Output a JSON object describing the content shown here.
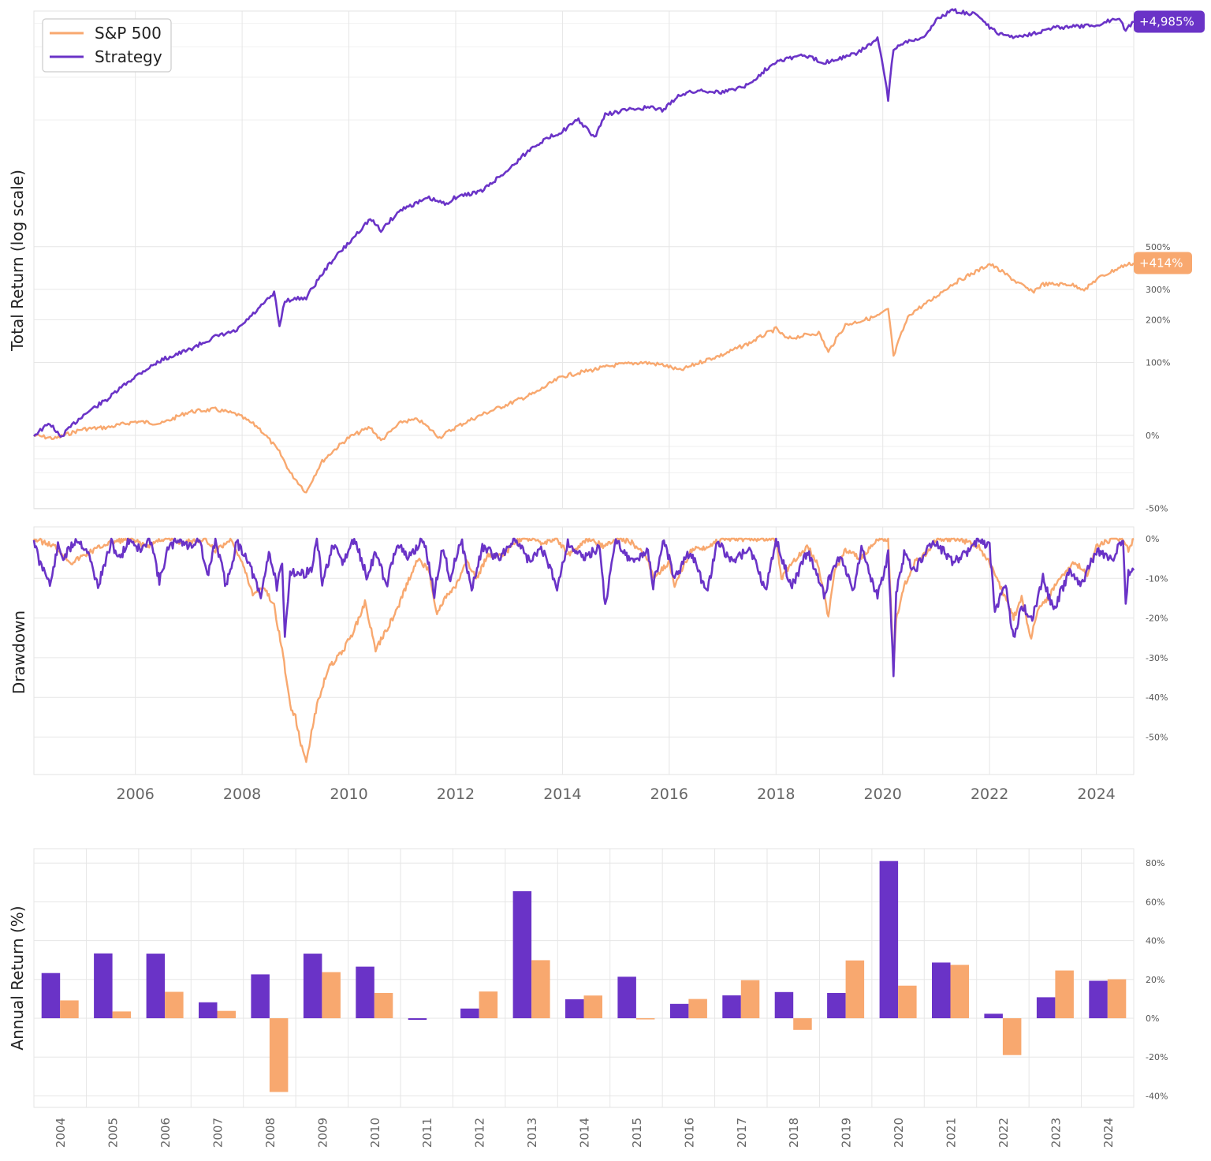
{
  "colors": {
    "strategy": "#6a33c7",
    "sp500": "#f8a86f",
    "grid": "#e6e6e6",
    "text": "#555555"
  },
  "legend": {
    "sp500": "S&P 500",
    "strategy": "Strategy"
  },
  "chart_data": [
    {
      "type": "line",
      "ylabel": "Total Return (log scale)",
      "yscale": "log",
      "right_ticks": [
        {
          "value": 500,
          "label": "500%"
        },
        {
          "value": 300,
          "label": "300%"
        },
        {
          "value": 200,
          "label": "200%"
        },
        {
          "value": 100,
          "label": "100%"
        },
        {
          "value": 0,
          "label": "0%"
        },
        {
          "value": -50,
          "label": "-50%"
        }
      ],
      "end_labels": {
        "strategy": "+4,985%",
        "sp500": "+414%"
      },
      "legend_placement": "top-left",
      "grid": true,
      "series": [
        {
          "name": "S&P 500",
          "x": [
            2004.1,
            2004.5,
            2005.0,
            2005.5,
            2006.0,
            2006.5,
            2007.0,
            2007.5,
            2007.9,
            2008.3,
            2008.7,
            2008.9,
            2009.2,
            2009.5,
            2010.0,
            2010.4,
            2010.6,
            2011.0,
            2011.3,
            2011.7,
            2012.0,
            2012.5,
            2013.0,
            2013.5,
            2014.0,
            2014.5,
            2015.0,
            2015.5,
            2015.9,
            2016.2,
            2016.7,
            2017.0,
            2017.5,
            2018.0,
            2018.2,
            2018.8,
            2018.98,
            2019.3,
            2019.9,
            2020.1,
            2020.2,
            2020.5,
            2020.9,
            2021.3,
            2021.8,
            2022.0,
            2022.5,
            2022.8,
            2023.0,
            2023.5,
            2023.8,
            2024.0,
            2024.5,
            2024.7
          ],
          "values": [
            0,
            -3,
            6,
            8,
            14,
            12,
            25,
            28,
            22,
            8,
            -15,
            -30,
            -42,
            -22,
            -2,
            8,
            -5,
            14,
            16,
            -2,
            8,
            22,
            35,
            50,
            75,
            85,
            95,
            100,
            95,
            85,
            105,
            115,
            140,
            175,
            150,
            165,
            120,
            185,
            210,
            230,
            110,
            215,
            260,
            320,
            380,
            410,
            330,
            290,
            320,
            320,
            300,
            340,
            400,
            414
          ]
        },
        {
          "name": "Strategy",
          "x": [
            2004.1,
            2004.4,
            2004.6,
            2005.0,
            2005.5,
            2006.0,
            2006.5,
            2007.0,
            2007.5,
            2007.9,
            2008.3,
            2008.6,
            2008.7,
            2008.8,
            2009.2,
            2009.4,
            2009.7,
            2010.0,
            2010.4,
            2010.6,
            2011.0,
            2011.5,
            2011.8,
            2012.0,
            2012.5,
            2013.0,
            2013.5,
            2014.0,
            2014.3,
            2014.6,
            2014.8,
            2015.2,
            2015.6,
            2015.9,
            2016.2,
            2016.6,
            2017.0,
            2017.5,
            2018.0,
            2018.5,
            2018.9,
            2019.2,
            2019.5,
            2019.9,
            2020.1,
            2020.2,
            2020.4,
            2020.8,
            2021.0,
            2021.3,
            2021.8,
            2022.0,
            2022.2,
            2022.5,
            2022.9,
            2023.2,
            2023.6,
            2024.0,
            2024.4,
            2024.55,
            2024.7
          ],
          "values": [
            0,
            12,
            -2,
            20,
            42,
            75,
            105,
            125,
            155,
            170,
            230,
            285,
            180,
            260,
            270,
            330,
            430,
            520,
            680,
            600,
            760,
            850,
            800,
            860,
            920,
            1150,
            1480,
            1700,
            1900,
            1580,
            2000,
            2100,
            2150,
            2100,
            2450,
            2550,
            2500,
            2700,
            3400,
            3600,
            3350,
            3500,
            3650,
            4200,
            2300,
            3800,
            4100,
            4300,
            5100,
            5550,
            5300,
            4700,
            4400,
            4300,
            4500,
            4700,
            4750,
            4800,
            5200,
            4600,
            4985
          ]
        }
      ]
    },
    {
      "type": "line",
      "ylabel": "Drawdown",
      "right_ticks": [
        {
          "value": 0,
          "label": "0%"
        },
        {
          "value": -10,
          "label": "-10%"
        },
        {
          "value": -20,
          "label": "-20%"
        },
        {
          "value": -30,
          "label": "-30%"
        },
        {
          "value": -40,
          "label": "-40%"
        },
        {
          "value": -50,
          "label": "-50%"
        }
      ],
      "x_ticks": [
        2006,
        2008,
        2010,
        2012,
        2014,
        2016,
        2018,
        2020,
        2022,
        2024
      ],
      "x_tick_labels": [
        "2006",
        "2008",
        "2010",
        "2012",
        "2014",
        "2016",
        "2018",
        "2020",
        "2022",
        "2024"
      ],
      "grid": true,
      "series": [
        {
          "name": "S&P 500",
          "x": [
            2004.1,
            2004.5,
            2004.8,
            2005.2,
            2005.5,
            2005.9,
            2006.2,
            2006.5,
            2006.9,
            2007.3,
            2007.5,
            2007.8,
            2008.0,
            2008.2,
            2008.4,
            2008.6,
            2008.75,
            2008.9,
            2009.0,
            2009.1,
            2009.2,
            2009.4,
            2009.6,
            2009.9,
            2010.1,
            2010.3,
            2010.5,
            2010.7,
            2010.9,
            2011.1,
            2011.3,
            2011.5,
            2011.65,
            2011.8,
            2012.0,
            2012.2,
            2012.4,
            2012.6,
            2012.9,
            2013.1,
            2013.3,
            2013.6,
            2013.9,
            2014.1,
            2014.5,
            2014.8,
            2015.0,
            2015.3,
            2015.6,
            2015.7,
            2016.0,
            2016.1,
            2016.4,
            2016.7,
            2017.0,
            2017.5,
            2018.0,
            2018.1,
            2018.3,
            2018.6,
            2018.8,
            2018.98,
            2019.1,
            2019.3,
            2019.6,
            2019.9,
            2020.1,
            2020.2,
            2020.25,
            2020.4,
            2020.6,
            2020.8,
            2021.0,
            2021.4,
            2021.8,
            2022.0,
            2022.2,
            2022.45,
            2022.6,
            2022.78,
            2022.9,
            2023.1,
            2023.3,
            2023.6,
            2023.83,
            2024.0,
            2024.3,
            2024.5,
            2024.6,
            2024.7
          ],
          "values": [
            0,
            -2,
            -6,
            -3,
            -1,
            0,
            -2,
            0,
            -1,
            0,
            -3,
            0,
            -6,
            -14,
            -12,
            -17,
            -28,
            -42,
            -45,
            -52,
            -56,
            -42,
            -33,
            -28,
            -23,
            -16,
            -28,
            -23,
            -18,
            -11,
            -5,
            -8,
            -19,
            -15,
            -12,
            -6,
            -10,
            -4,
            -4,
            -1,
            0,
            -1,
            0,
            -4,
            0,
            -2,
            0,
            -1,
            -5,
            -10,
            -6,
            -12,
            -3,
            -2,
            0,
            0,
            0,
            -10,
            -6,
            -2,
            -7,
            -20,
            -8,
            -3,
            -5,
            0,
            0,
            -33,
            -20,
            -12,
            -6,
            -4,
            0,
            0,
            -2,
            -6,
            -12,
            -20,
            -15,
            -25,
            -18,
            -15,
            -10,
            -6,
            -9,
            -2,
            0,
            0,
            -3,
            0
          ]
        },
        {
          "name": "Strategy",
          "x": [
            2004.1,
            2004.2,
            2004.35,
            2004.4,
            2004.55,
            2004.65,
            2004.9,
            2005.1,
            2005.3,
            2005.55,
            2005.7,
            2005.9,
            2006.1,
            2006.3,
            2006.45,
            2006.6,
            2006.8,
            2007.0,
            2007.2,
            2007.35,
            2007.5,
            2007.7,
            2007.9,
            2008.1,
            2008.35,
            2008.5,
            2008.65,
            2008.75,
            2008.8,
            2008.9,
            2009.1,
            2009.3,
            2009.4,
            2009.5,
            2009.7,
            2009.9,
            2010.1,
            2010.35,
            2010.5,
            2010.7,
            2010.9,
            2011.1,
            2011.4,
            2011.6,
            2011.75,
            2011.9,
            2012.1,
            2012.3,
            2012.5,
            2012.8,
            2013.1,
            2013.4,
            2013.6,
            2013.9,
            2014.1,
            2014.4,
            2014.7,
            2014.8,
            2015.0,
            2015.3,
            2015.6,
            2015.7,
            2015.9,
            2016.1,
            2016.4,
            2016.7,
            2016.9,
            2017.2,
            2017.5,
            2017.8,
            2018.0,
            2018.1,
            2018.3,
            2018.6,
            2018.9,
            2019.0,
            2019.2,
            2019.45,
            2019.6,
            2019.9,
            2020.1,
            2020.2,
            2020.25,
            2020.4,
            2020.6,
            2020.8,
            2021.0,
            2021.3,
            2021.6,
            2021.8,
            2022.0,
            2022.1,
            2022.3,
            2022.45,
            2022.6,
            2022.8,
            2023.0,
            2023.2,
            2023.5,
            2023.7,
            2024.0,
            2024.3,
            2024.5,
            2024.55,
            2024.6,
            2024.7
          ],
          "values": [
            0,
            -6,
            -9,
            -12,
            -2,
            -5,
            0,
            -3,
            -12,
            -1,
            -5,
            0,
            -3,
            0,
            -11,
            -3,
            0,
            -2,
            0,
            -10,
            0,
            -12,
            -1,
            -5,
            -15,
            -3,
            -12,
            -7,
            -25,
            -8,
            -9,
            -8,
            0,
            -11,
            -2,
            -6,
            0,
            -10,
            -3,
            -12,
            -1,
            -5,
            0,
            -14,
            -2,
            -10,
            0,
            -13,
            -2,
            -5,
            0,
            -6,
            -2,
            -12,
            -1,
            -5,
            -2,
            -17,
            0,
            -6,
            -3,
            -12,
            0,
            -10,
            -3,
            -14,
            -1,
            -6,
            -2,
            -13,
            0,
            -5,
            -12,
            -3,
            -14,
            -10,
            -4,
            -13,
            -2,
            -15,
            -4,
            -34,
            -14,
            -4,
            -8,
            -3,
            -1,
            -6,
            -3,
            0,
            -2,
            -18,
            -12,
            -25,
            -17,
            -20,
            -10,
            -18,
            -8,
            -12,
            -3,
            -5,
            0,
            -17,
            -9,
            -8
          ]
        }
      ]
    },
    {
      "type": "bar",
      "ylabel": "Annual Return (%)",
      "categories": [
        "2004",
        "2005",
        "2006",
        "2007",
        "2008",
        "2009",
        "2010",
        "2011",
        "2012",
        "2013",
        "2014",
        "2015",
        "2016",
        "2017",
        "2018",
        "2019",
        "2020",
        "2021",
        "2022",
        "2023",
        "2024"
      ],
      "right_ticks": [
        {
          "value": 80,
          "label": "80%"
        },
        {
          "value": 60,
          "label": "60%"
        },
        {
          "value": 40,
          "label": "40%"
        },
        {
          "value": 20,
          "label": "20%"
        },
        {
          "value": 0,
          "label": "0%"
        },
        {
          "value": -20,
          "label": "-20%"
        },
        {
          "value": -40,
          "label": "-40%"
        }
      ],
      "ylim": [
        -45,
        85
      ],
      "grid": true,
      "series": [
        {
          "name": "Strategy",
          "values": [
            23.3,
            33.4,
            33.3,
            8.2,
            22.6,
            33.3,
            26.6,
            -0.8,
            5.0,
            65.5,
            9.8,
            21.4,
            7.4,
            11.8,
            13.5,
            13.0,
            81.0,
            28.7,
            2.3,
            10.8,
            19.3
          ]
        },
        {
          "name": "S&P 500",
          "values": [
            9.2,
            3.5,
            13.6,
            3.8,
            -38.0,
            23.8,
            13.0,
            0.0,
            13.8,
            29.9,
            11.7,
            -0.5,
            9.9,
            19.6,
            -6.0,
            29.8,
            16.8,
            27.5,
            -19.0,
            24.6,
            20.1
          ]
        }
      ]
    }
  ]
}
